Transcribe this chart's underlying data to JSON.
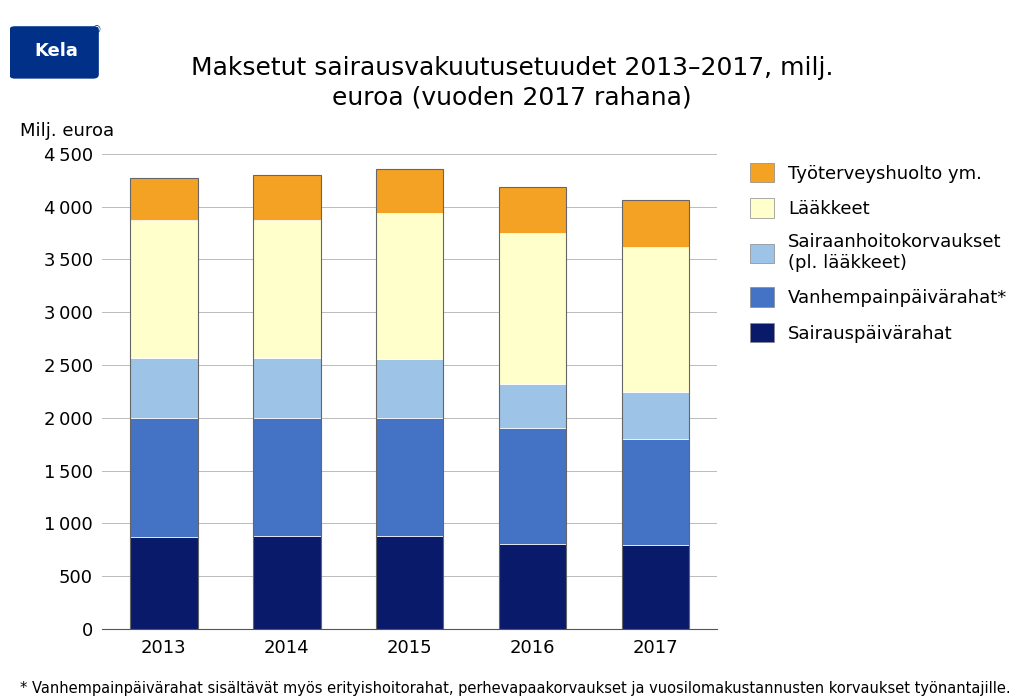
{
  "title": "Maksetut sairausvakuutusetuudet 2013–2017, milj.\neuroa (vuoden 2017 rahana)",
  "ylabel": "Milj. euroa",
  "years": [
    2013,
    2014,
    2015,
    2016,
    2017
  ],
  "values": {
    "Sairauspäivärahat": [
      870,
      880,
      880,
      810,
      800
    ],
    "Vanhempainpäivärahat": [
      1130,
      1120,
      1120,
      1090,
      1000
    ],
    "Sairaanhoitokorvaukset": [
      570,
      570,
      560,
      420,
      440
    ],
    "Lääkkeet": [
      1300,
      1300,
      1380,
      1430,
      1380
    ],
    "Työterveyshuolto": [
      400,
      430,
      420,
      440,
      440
    ]
  },
  "colors": {
    "Sairauspäivärahat": "#0a1a6b",
    "Vanhempainpäivärahat": "#4472c4",
    "Sairaanhoitokorvaukset": "#9dc3e6",
    "Lääkkeet": "#ffffcc",
    "Työterveyshuolto": "#f4a223"
  },
  "legend_labels": [
    "Työterveyshuolto ym.",
    "Lääkkeet",
    "Sairaanhoitokorvaukset\n(pl. lääkkeet)",
    "Vanhempainpäivärahat*",
    "Sairauspäivärahat"
  ],
  "footnote": "* Vanhempainpäivärahat sisältävät myös erityishoitorahat, perhevapaakorvaukset ja vuosilomakustannusten korvaukset työnantajille.",
  "ylim": [
    0,
    4500
  ],
  "yticks": [
    0,
    500,
    1000,
    1500,
    2000,
    2500,
    3000,
    3500,
    4000,
    4500
  ],
  "bar_width": 0.55,
  "kela_color": "#003087",
  "background_color": "#ffffff",
  "title_fontsize": 18,
  "tick_fontsize": 13,
  "legend_fontsize": 13,
  "ylabel_fontsize": 13,
  "footnote_fontsize": 10.5
}
